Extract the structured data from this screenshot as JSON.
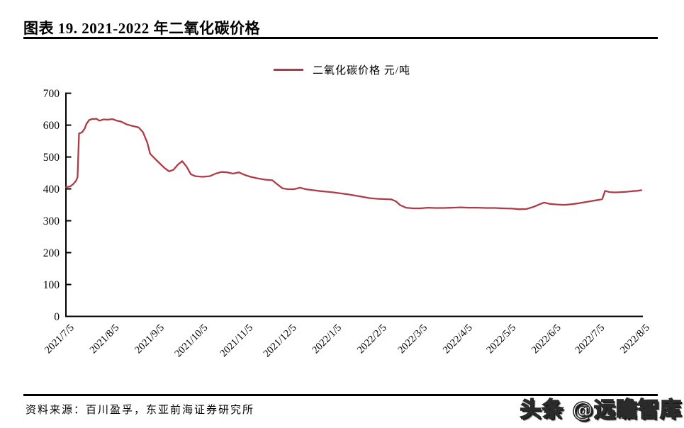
{
  "header": {
    "title": "图表 19. 2021-2022 年二氧化碳价格"
  },
  "legend": {
    "label": "二氧化碳价格 元/吨"
  },
  "footer": {
    "source": "资料来源：百川盈孚，东亚前海证券研究所",
    "watermark": "头条 @远瞻智库"
  },
  "colors": {
    "line": "#ae3b46",
    "axis": "#000000",
    "text": "#000000"
  },
  "chart_data": {
    "type": "line",
    "title": "2021-2022 年二氧化碳价格",
    "ylabel": "元/吨",
    "xlabel": "",
    "ylim": [
      0,
      700
    ],
    "yticks": [
      0,
      100,
      200,
      300,
      400,
      500,
      600,
      700
    ],
    "xtick_labels": [
      "2021/7/5",
      "2021/8/5",
      "2021/9/5",
      "2021/10/5",
      "2021/11/5",
      "2021/12/5",
      "2022/1/5",
      "2022/2/5",
      "2022/3/5",
      "2022/4/5",
      "2022/5/5",
      "2022/6/5",
      "2022/7/5",
      "2022/8/5"
    ],
    "x_range": [
      "2021/7/5",
      "2022/8/5"
    ],
    "grid": false,
    "legend_position": "top-center",
    "series": [
      {
        "name": "二氧化碳价格 元/吨",
        "color": "#ae3b46",
        "points": [
          [
            "2021/7/5",
            405
          ],
          [
            "2021/7/8",
            408
          ],
          [
            "2021/7/10",
            415
          ],
          [
            "2021/7/12",
            426
          ],
          [
            "2021/7/13",
            437
          ],
          [
            "2021/7/14",
            574
          ],
          [
            "2021/7/16",
            577
          ],
          [
            "2021/7/18",
            590
          ],
          [
            "2021/7/19",
            603
          ],
          [
            "2021/7/21",
            616
          ],
          [
            "2021/7/23",
            619
          ],
          [
            "2021/7/26",
            620
          ],
          [
            "2021/7/28",
            614
          ],
          [
            "2021/7/31",
            618
          ],
          [
            "2021/8/3",
            617
          ],
          [
            "2021/8/6",
            619
          ],
          [
            "2021/8/9",
            614
          ],
          [
            "2021/8/12",
            611
          ],
          [
            "2021/8/16",
            602
          ],
          [
            "2021/8/20",
            597
          ],
          [
            "2021/8/24",
            593
          ],
          [
            "2021/8/27",
            578
          ],
          [
            "2021/8/30",
            545
          ],
          [
            "2021/9/1",
            510
          ],
          [
            "2021/9/4",
            496
          ],
          [
            "2021/9/8",
            478
          ],
          [
            "2021/9/11",
            465
          ],
          [
            "2021/9/14",
            455
          ],
          [
            "2021/9/17",
            460
          ],
          [
            "2021/9/20",
            476
          ],
          [
            "2021/9/23",
            487
          ],
          [
            "2021/9/26",
            470
          ],
          [
            "2021/9/29",
            446
          ],
          [
            "2021/10/2",
            440
          ],
          [
            "2021/10/7",
            438
          ],
          [
            "2021/10/12",
            440
          ],
          [
            "2021/10/16",
            448
          ],
          [
            "2021/10/20",
            453
          ],
          [
            "2021/10/24",
            452
          ],
          [
            "2021/10/28",
            448
          ],
          [
            "2021/11/1",
            452
          ],
          [
            "2021/11/5",
            444
          ],
          [
            "2021/11/9",
            438
          ],
          [
            "2021/11/14",
            433
          ],
          [
            "2021/11/19",
            429
          ],
          [
            "2021/11/24",
            427
          ],
          [
            "2021/11/27",
            416
          ],
          [
            "2021/12/1",
            402
          ],
          [
            "2021/12/5",
            399
          ],
          [
            "2021/12/9",
            399
          ],
          [
            "2021/12/13",
            404
          ],
          [
            "2021/12/17",
            399
          ],
          [
            "2021/12/22",
            396
          ],
          [
            "2021/12/27",
            393
          ],
          [
            "2022/1/1",
            391
          ],
          [
            "2022/1/5",
            389
          ],
          [
            "2022/1/10",
            386
          ],
          [
            "2022/1/15",
            383
          ],
          [
            "2022/1/20",
            379
          ],
          [
            "2022/1/25",
            375
          ],
          [
            "2022/1/30",
            371
          ],
          [
            "2022/2/4",
            369
          ],
          [
            "2022/2/9",
            368
          ],
          [
            "2022/2/14",
            367
          ],
          [
            "2022/2/17",
            361
          ],
          [
            "2022/2/20",
            349
          ],
          [
            "2022/2/24",
            341
          ],
          [
            "2022/3/1",
            339
          ],
          [
            "2022/3/6",
            339
          ],
          [
            "2022/3/11",
            341
          ],
          [
            "2022/3/16",
            340
          ],
          [
            "2022/3/22",
            340
          ],
          [
            "2022/3/28",
            341
          ],
          [
            "2022/4/3",
            342
          ],
          [
            "2022/4/8",
            341
          ],
          [
            "2022/4/14",
            341
          ],
          [
            "2022/4/20",
            340
          ],
          [
            "2022/4/26",
            340
          ],
          [
            "2022/5/2",
            339
          ],
          [
            "2022/5/8",
            338
          ],
          [
            "2022/5/13",
            336
          ],
          [
            "2022/5/18",
            337
          ],
          [
            "2022/5/23",
            344
          ],
          [
            "2022/5/27",
            352
          ],
          [
            "2022/5/30",
            357
          ],
          [
            "2022/6/3",
            353
          ],
          [
            "2022/6/8",
            351
          ],
          [
            "2022/6/13",
            350
          ],
          [
            "2022/6/18",
            352
          ],
          [
            "2022/6/23",
            355
          ],
          [
            "2022/6/28",
            359
          ],
          [
            "2022/7/3",
            363
          ],
          [
            "2022/7/6",
            365
          ],
          [
            "2022/7/9",
            368
          ],
          [
            "2022/7/11",
            394
          ],
          [
            "2022/7/14",
            390
          ],
          [
            "2022/7/18",
            389
          ],
          [
            "2022/7/22",
            390
          ],
          [
            "2022/7/26",
            391
          ],
          [
            "2022/7/30",
            393
          ],
          [
            "2022/8/2",
            394
          ],
          [
            "2022/8/5",
            396
          ]
        ]
      }
    ]
  }
}
